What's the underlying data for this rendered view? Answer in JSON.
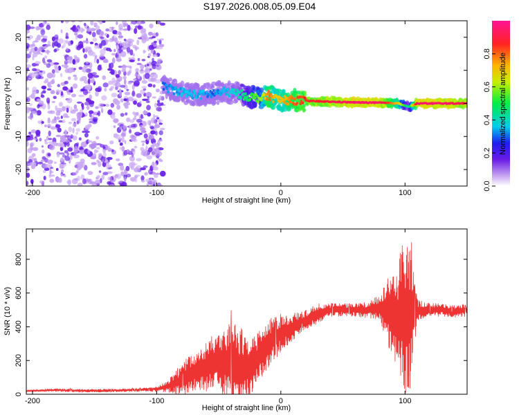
{
  "title": "S197.2026.008.05.09.E04",
  "chart_data": [
    {
      "type": "heatmap",
      "title": "",
      "xlabel": "Height of straight line (km)",
      "ylabel": "Frequency (Hz)",
      "xlim": [
        -205,
        150
      ],
      "ylim": [
        -25,
        25
      ],
      "xticks": [
        -200,
        -100,
        0,
        100
      ],
      "yticks": [
        -20,
        -10,
        0,
        10,
        20
      ],
      "colorbar": {
        "label": "Normalized spectral amplitude",
        "range": [
          0,
          1
        ],
        "ticks": [
          0.0,
          0.2,
          0.4,
          0.6,
          0.8
        ],
        "tick_labels": [
          "0.0",
          "0.2",
          "0.4",
          "0.6",
          "0.8"
        ]
      },
      "noise_region": {
        "x_range": [
          -205,
          -95
        ],
        "freq_range": [
          -25,
          25
        ],
        "amplitude": 0.05
      },
      "ridge": [
        {
          "x": -95,
          "freq": 5.0,
          "amplitude": 0.3
        },
        {
          "x": -85,
          "freq": 4.0,
          "amplitude": 0.35
        },
        {
          "x": -75,
          "freq": 3.0,
          "amplitude": 0.35
        },
        {
          "x": -65,
          "freq": 2.5,
          "amplitude": 0.35
        },
        {
          "x": -55,
          "freq": 3.0,
          "amplitude": 0.3
        },
        {
          "x": -45,
          "freq": 3.5,
          "amplitude": 0.35
        },
        {
          "x": -35,
          "freq": 3.0,
          "amplitude": 0.4
        },
        {
          "x": -25,
          "freq": 2.0,
          "amplitude": 0.5
        },
        {
          "x": -15,
          "freq": 1.5,
          "amplitude": 0.6
        },
        {
          "x": -10,
          "freq": 2.5,
          "amplitude": 0.8
        },
        {
          "x": -5,
          "freq": 1.5,
          "amplitude": 0.7
        },
        {
          "x": 0,
          "freq": 1.0,
          "amplitude": 0.7
        },
        {
          "x": 10,
          "freq": 1.0,
          "amplitude": 0.8
        },
        {
          "x": 20,
          "freq": 0.8,
          "amplitude": 0.85
        },
        {
          "x": 40,
          "freq": 0.5,
          "amplitude": 0.9
        },
        {
          "x": 60,
          "freq": 0.3,
          "amplitude": 0.95
        },
        {
          "x": 80,
          "freq": 0.2,
          "amplitude": 0.95
        },
        {
          "x": 95,
          "freq": 0.0,
          "amplitude": 0.7
        },
        {
          "x": 103,
          "freq": -1.0,
          "amplitude": 0.4
        },
        {
          "x": 110,
          "freq": 0.0,
          "amplitude": 0.95
        },
        {
          "x": 130,
          "freq": 0.0,
          "amplitude": 0.95
        },
        {
          "x": 150,
          "freq": 0.0,
          "amplitude": 0.9
        }
      ]
    },
    {
      "type": "line",
      "title": "",
      "xlabel": "Height of straight line (km)",
      "ylabel": "SNR (10 * v/v)",
      "xlim": [
        -205,
        150
      ],
      "ylim": [
        0,
        980
      ],
      "xticks": [
        -200,
        -100,
        0,
        100
      ],
      "yticks": [
        0,
        200,
        400,
        600,
        800
      ],
      "series": [
        {
          "name": "SNR",
          "color": "#ee3333",
          "x": [
            -205,
            -180,
            -160,
            -140,
            -120,
            -100,
            -90,
            -80,
            -70,
            -60,
            -50,
            -40,
            -30,
            -20,
            -10,
            0,
            10,
            20,
            30,
            40,
            50,
            60,
            70,
            80,
            85,
            90,
            95,
            100,
            105,
            110,
            120,
            130,
            140,
            150
          ],
          "y": [
            20,
            25,
            20,
            22,
            25,
            30,
            50,
            90,
            130,
            160,
            200,
            180,
            150,
            200,
            300,
            360,
            400,
            440,
            480,
            500,
            500,
            500,
            500,
            510,
            500,
            480,
            500,
            450,
            480,
            500,
            500,
            500,
            490,
            500
          ],
          "envelope": [
            5,
            10,
            10,
            10,
            10,
            15,
            40,
            100,
            120,
            150,
            200,
            250,
            250,
            150,
            150,
            120,
            80,
            60,
            60,
            40,
            40,
            40,
            50,
            80,
            220,
            250,
            380,
            450,
            450,
            60,
            40,
            40,
            40,
            40
          ]
        }
      ]
    }
  ]
}
